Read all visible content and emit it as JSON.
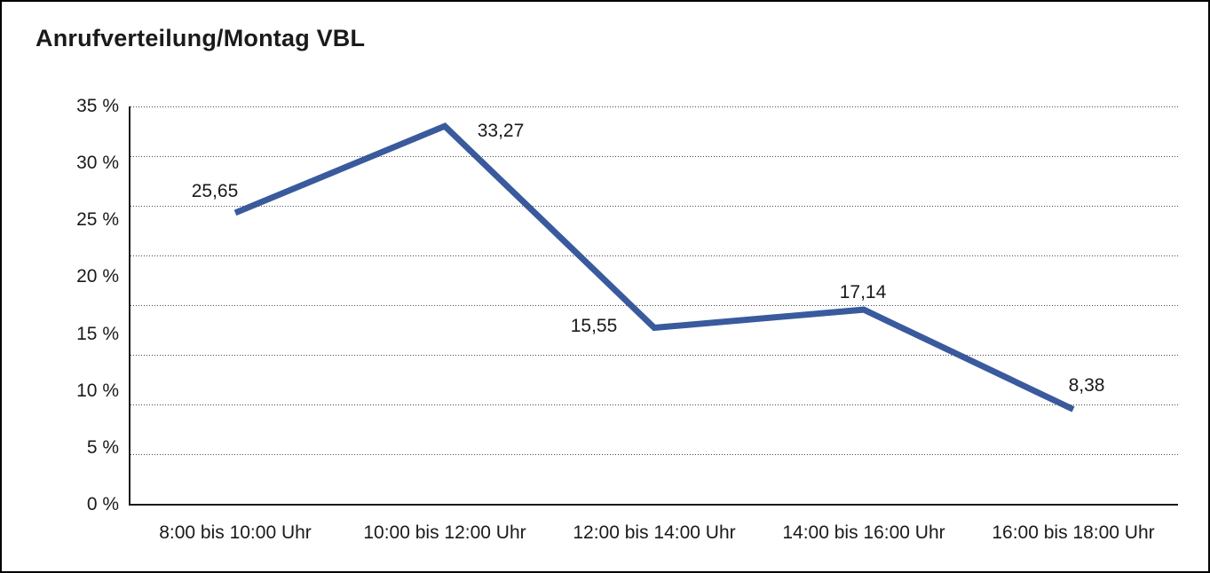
{
  "title": "Anrufverteilung/Montag VBL",
  "chart_data": {
    "type": "line",
    "title": "Anrufverteilung/Montag VBL",
    "categories": [
      "8:00 bis 10:00 Uhr",
      "10:00 bis 12:00 Uhr",
      "12:00 bis 14:00 Uhr",
      "14:00 bis 16:00 Uhr",
      "16:00 bis 18:00 Uhr"
    ],
    "values": [
      25.65,
      33.27,
      15.55,
      17.14,
      8.38
    ],
    "value_labels": [
      "25,65",
      "33,27",
      "15,55",
      "17,14",
      "8,38"
    ],
    "xlabel": "",
    "ylabel": "",
    "y_ticks": [
      "35 %",
      "30 %",
      "25 %",
      "20 %",
      "15 %",
      "10 %",
      "5 %",
      "0 %"
    ],
    "ylim": [
      0,
      35
    ],
    "grid": "horizontal-dotted",
    "legend": "none",
    "line_color": "#3A5A9E",
    "axis_color": "#1a1a1a"
  }
}
